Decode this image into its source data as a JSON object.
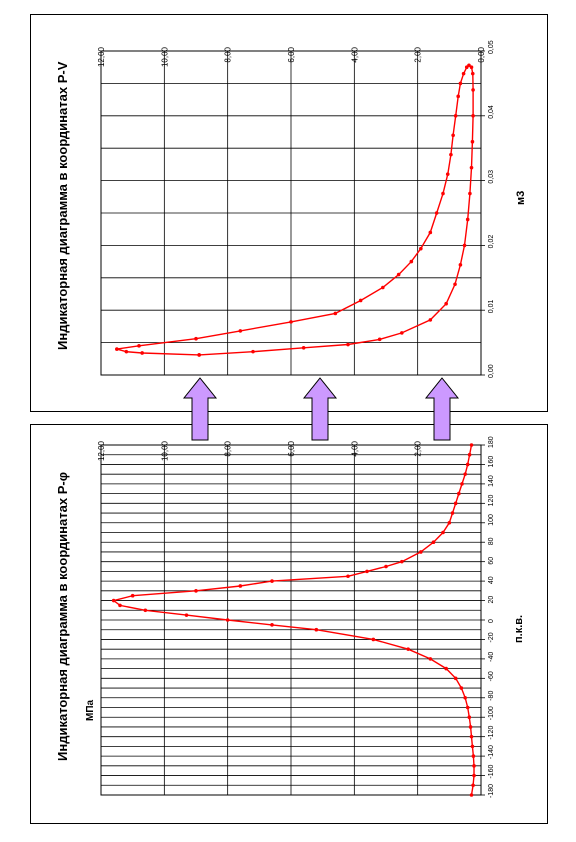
{
  "chart_data": [
    {
      "type": "line",
      "title": "Индикаторная диаграмма в координатах P-φ",
      "xlabel": "п.к.в.",
      "ylabel": "МПа",
      "xlim": [
        -180,
        180
      ],
      "ylim": [
        0,
        12
      ],
      "x_ticks": [
        -180,
        -160,
        -140,
        -120,
        -100,
        -80,
        -60,
        -40,
        -20,
        0,
        20,
        40,
        60,
        80,
        100,
        120,
        140,
        160,
        180
      ],
      "y_tick_labels": [
        "2,00",
        "4,00",
        "6,00",
        "8,00",
        "10,00",
        "12,00"
      ],
      "y_ticks": [
        2,
        4,
        6,
        8,
        10,
        12
      ],
      "grid": true,
      "legend": "none",
      "series": [
        {
          "color": "#ff0000",
          "points": [
            [
              -180,
              0.3
            ],
            [
              -170,
              0.25
            ],
            [
              -160,
              0.22
            ],
            [
              -150,
              0.22
            ],
            [
              -140,
              0.24
            ],
            [
              -130,
              0.27
            ],
            [
              -120,
              0.3
            ],
            [
              -110,
              0.33
            ],
            [
              -100,
              0.37
            ],
            [
              -90,
              0.42
            ],
            [
              -80,
              0.5
            ],
            [
              -70,
              0.62
            ],
            [
              -60,
              0.8
            ],
            [
              -50,
              1.1
            ],
            [
              -40,
              1.6
            ],
            [
              -30,
              2.3
            ],
            [
              -20,
              3.4
            ],
            [
              -10,
              5.2
            ],
            [
              -5,
              6.6
            ],
            [
              0,
              8.0
            ],
            [
              5,
              9.3
            ],
            [
              10,
              10.6
            ],
            [
              15,
              11.4
            ],
            [
              20,
              11.6
            ],
            [
              25,
              11.0
            ],
            [
              30,
              9.0
            ],
            [
              35,
              7.6
            ],
            [
              40,
              6.6
            ],
            [
              45,
              4.2
            ],
            [
              50,
              3.6
            ],
            [
              55,
              3.0
            ],
            [
              60,
              2.5
            ],
            [
              70,
              1.9
            ],
            [
              80,
              1.5
            ],
            [
              90,
              1.2
            ],
            [
              100,
              1.0
            ],
            [
              110,
              0.9
            ],
            [
              120,
              0.8
            ],
            [
              130,
              0.7
            ],
            [
              140,
              0.6
            ],
            [
              150,
              0.5
            ],
            [
              160,
              0.42
            ],
            [
              170,
              0.36
            ],
            [
              180,
              0.3
            ]
          ]
        }
      ]
    },
    {
      "type": "line",
      "title": "Индикаторная диаграмма в координатах P-V",
      "xlabel": "м3",
      "ylabel": "",
      "xlim": [
        0.0,
        0.05
      ],
      "ylim": [
        0,
        12
      ],
      "x_tick_labels": [
        "0,00",
        "0,01",
        "0,02",
        "0,03",
        "0,04",
        "0,05"
      ],
      "x_ticks": [
        0.0,
        0.01,
        0.02,
        0.03,
        0.04,
        0.05
      ],
      "y_tick_labels": [
        "0,00",
        "2,00",
        "4,00",
        "6,00",
        "8,00",
        "10,00",
        "12,00"
      ],
      "y_ticks": [
        0,
        2,
        4,
        6,
        8,
        10,
        12
      ],
      "grid": true,
      "legend": "none",
      "series": [
        {
          "color": "#ff0000",
          "points": [
            [
              0.0031,
              8.9
            ],
            [
              0.0034,
              10.7
            ],
            [
              0.0036,
              11.2
            ],
            [
              0.004,
              11.5
            ],
            [
              0.0045,
              10.8
            ],
            [
              0.0056,
              9.0
            ],
            [
              0.0068,
              7.6
            ],
            [
              0.0082,
              6.0
            ],
            [
              0.0095,
              4.6
            ],
            [
              0.0115,
              3.8
            ],
            [
              0.0135,
              3.1
            ],
            [
              0.0155,
              2.6
            ],
            [
              0.0175,
              2.2
            ],
            [
              0.0195,
              1.9
            ],
            [
              0.022,
              1.6
            ],
            [
              0.025,
              1.4
            ],
            [
              0.028,
              1.2
            ],
            [
              0.031,
              1.05
            ],
            [
              0.034,
              0.95
            ],
            [
              0.037,
              0.88
            ],
            [
              0.04,
              0.8
            ],
            [
              0.043,
              0.72
            ],
            [
              0.045,
              0.65
            ],
            [
              0.0465,
              0.55
            ],
            [
              0.0475,
              0.45
            ],
            [
              0.0478,
              0.38
            ],
            [
              0.0475,
              0.3
            ],
            [
              0.0465,
              0.26
            ],
            [
              0.044,
              0.25
            ],
            [
              0.04,
              0.25
            ],
            [
              0.036,
              0.27
            ],
            [
              0.032,
              0.3
            ],
            [
              0.028,
              0.35
            ],
            [
              0.024,
              0.42
            ],
            [
              0.02,
              0.52
            ],
            [
              0.017,
              0.65
            ],
            [
              0.014,
              0.82
            ],
            [
              0.011,
              1.1
            ],
            [
              0.0085,
              1.6
            ],
            [
              0.0065,
              2.5
            ],
            [
              0.0055,
              3.2
            ],
            [
              0.0047,
              4.2
            ],
            [
              0.0042,
              5.6
            ],
            [
              0.0036,
              7.2
            ],
            [
              0.0031,
              8.9
            ]
          ]
        }
      ]
    }
  ],
  "arrows": {
    "fill": "#cc99ff",
    "stroke": "#000000",
    "count": 3
  }
}
